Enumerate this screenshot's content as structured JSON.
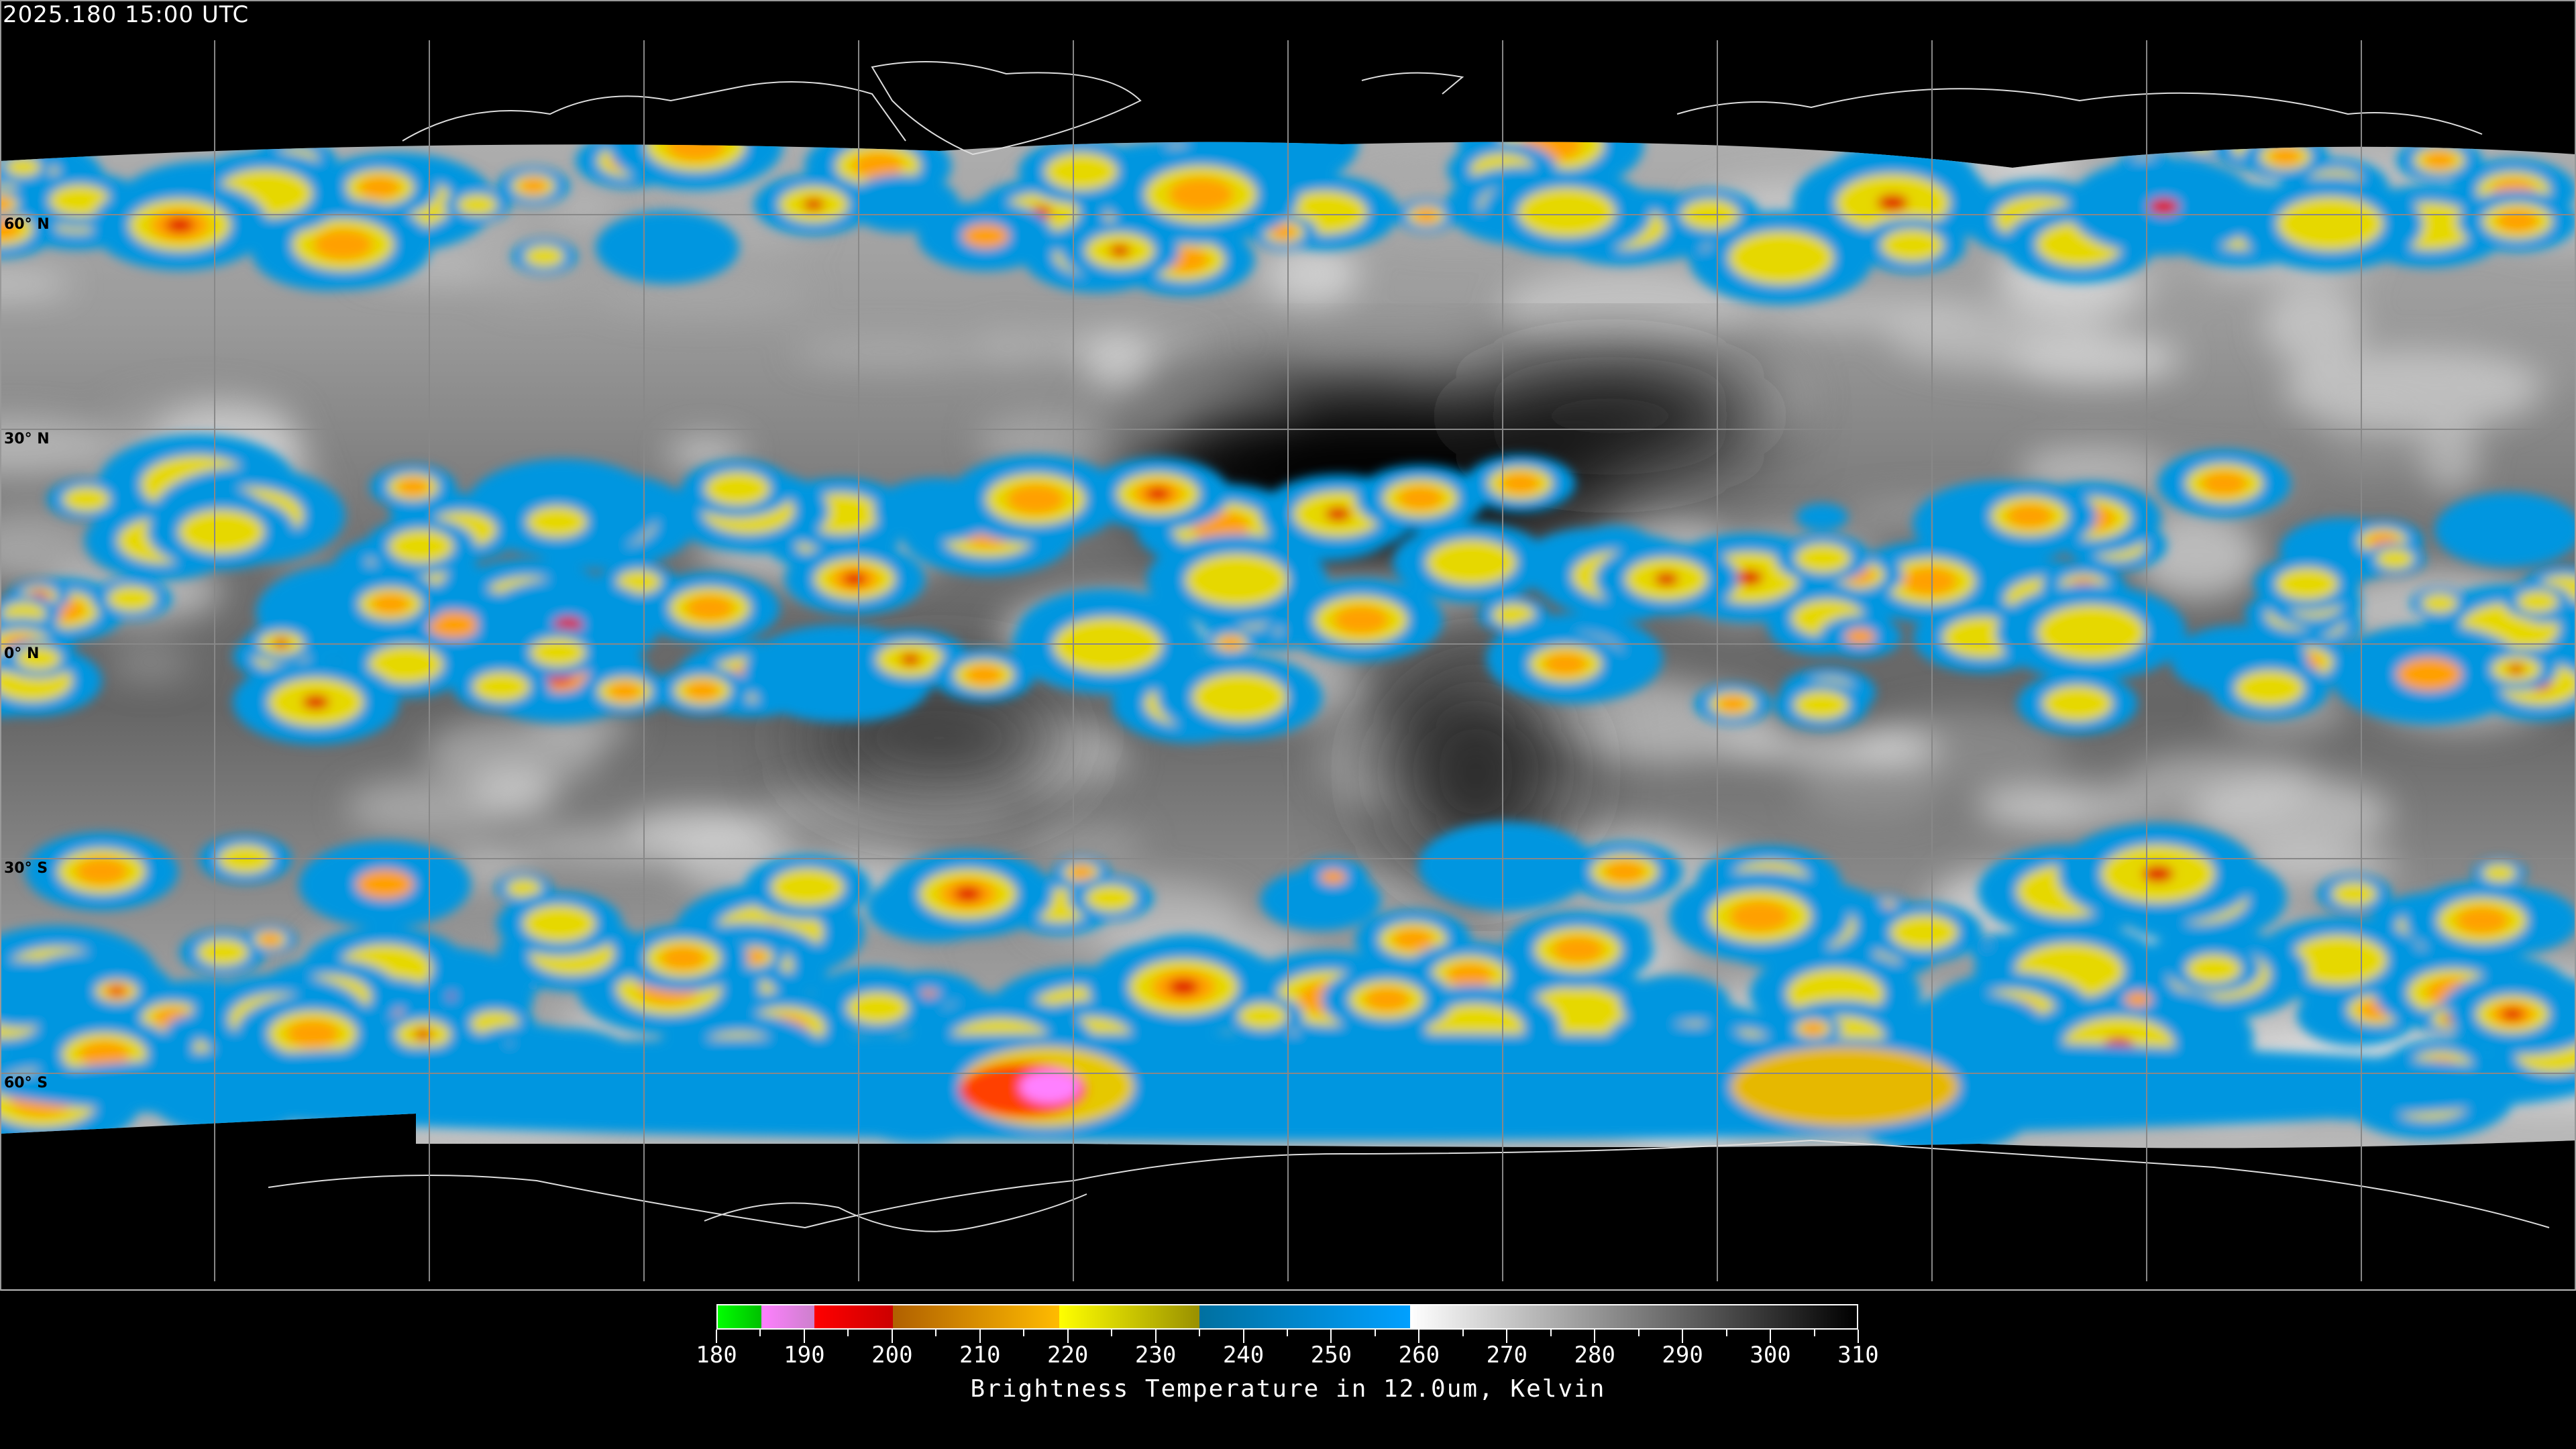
{
  "header": {
    "timestamp": "2025.180 15:00 UTC"
  },
  "map": {
    "projection": "equirectangular",
    "lat_labels": [
      "60° N",
      "30° N",
      "0° N",
      "30° S",
      "60° S"
    ],
    "graticule_spacing_deg": 30
  },
  "colorbar": {
    "title": "Brightness Temperature in 12.0um, Kelvin",
    "min": 180,
    "max": 310,
    "tick_labels": [
      "180",
      "190",
      "200",
      "210",
      "220",
      "230",
      "240",
      "250",
      "260",
      "270",
      "280",
      "290",
      "300",
      "310"
    ],
    "segments": [
      {
        "from": 180,
        "to": 185,
        "start_color": "#00ff00",
        "end_color": "#00c000"
      },
      {
        "from": 185,
        "to": 191,
        "start_color": "#ff80ff",
        "end_color": "#cc80cc"
      },
      {
        "from": 191,
        "to": 200,
        "start_color": "#ff0000",
        "end_color": "#cc0000"
      },
      {
        "from": 200,
        "to": 219,
        "start_color": "#b06000",
        "end_color": "#ffbb00"
      },
      {
        "from": 219,
        "to": 235,
        "start_color": "#ffff00",
        "end_color": "#999000"
      },
      {
        "from": 235,
        "to": 259,
        "start_color": "#0070a0",
        "end_color": "#00a0ff"
      },
      {
        "from": 259,
        "to": 310,
        "start_color": "#ffffff",
        "end_color": "#000000"
      }
    ]
  }
}
